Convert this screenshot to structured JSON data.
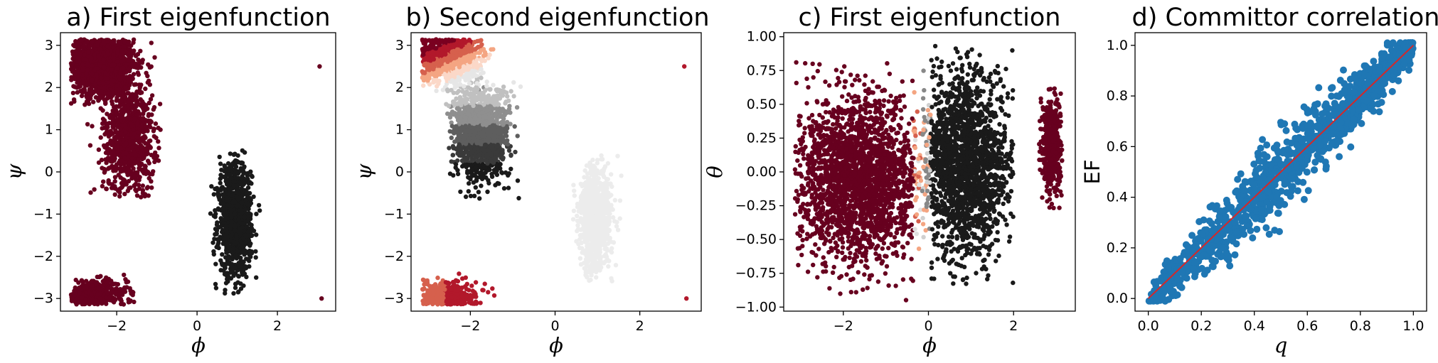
{
  "chart_data": [
    {
      "type": "scatter",
      "title": "a) First eigenfunction",
      "xlabel": "ϕ",
      "ylabel": "ψ",
      "xlim": [
        -3.4,
        3.45
      ],
      "ylim": [
        -3.3,
        3.3
      ],
      "xticks": [
        -2,
        0,
        2
      ],
      "xtick_labels": [
        "−2",
        "0",
        "2"
      ],
      "yticks": [
        -3,
        -2,
        -1,
        0,
        1,
        2,
        3
      ],
      "ytick_labels": [
        "−3",
        "−2",
        "−1",
        "0",
        "1",
        "2",
        "3"
      ],
      "colormap": "RdGy",
      "colors": {
        "high": "#67001f",
        "mid": "#c92a3a",
        "light": "#f0eeee",
        "low": "#1a1a1a"
      },
      "clusters": [
        {
          "name": "upper-left basin",
          "x_range": [
            -3.14,
            -1.2
          ],
          "y_range": [
            -0.5,
            3.14
          ],
          "value": "high"
        },
        {
          "name": "lower-left basin",
          "x_range": [
            -3.14,
            -1.5
          ],
          "y_range": [
            -3.14,
            -1.9
          ],
          "value": "high"
        },
        {
          "name": "right basin",
          "x_range": [
            0.4,
            1.5
          ],
          "y_range": [
            -2.8,
            0.5
          ],
          "value": "low"
        }
      ],
      "outliers": [
        {
          "x": 3.05,
          "y": 2.5
        },
        {
          "x": 3.1,
          "y": -3.0
        }
      ]
    },
    {
      "type": "scatter",
      "title": "b) Second eigenfunction",
      "xlabel": "ϕ",
      "ylabel": "ψ",
      "xlim": [
        -3.4,
        3.45
      ],
      "ylim": [
        -3.3,
        3.3
      ],
      "xticks": [
        -2,
        0,
        2
      ],
      "xtick_labels": [
        "−2",
        "0",
        "2"
      ],
      "yticks": [
        -3,
        -2,
        -1,
        0,
        1,
        2,
        3
      ],
      "ytick_labels": [
        "−3",
        "−2",
        "−1",
        "0",
        "1",
        "2",
        "3"
      ],
      "colormap": "RdGy",
      "clusters": [
        {
          "name": "upper-left basin (top)",
          "x_range": [
            -3.14,
            -1.8
          ],
          "y_range": [
            2.2,
            3.14
          ],
          "value": "mid-high"
        },
        {
          "name": "upper-left basin (bottom)",
          "x_range": [
            -2.5,
            -0.8
          ],
          "y_range": [
            -0.7,
            2.0
          ],
          "value": "low"
        },
        {
          "name": "lower-left basin",
          "x_range": [
            -3.14,
            -1.5
          ],
          "y_range": [
            -3.14,
            -2.2
          ],
          "value": "mid-high"
        },
        {
          "name": "right basin",
          "x_range": [
            0.5,
            1.5
          ],
          "y_range": [
            -2.5,
            0.5
          ],
          "value": "neutral"
        }
      ],
      "outliers": [
        {
          "x": 3.05,
          "y": 2.5
        },
        {
          "x": 3.1,
          "y": -3.0
        }
      ]
    },
    {
      "type": "scatter",
      "title": "c) First eigenfunction",
      "xlabel": "ϕ",
      "ylabel": "θ",
      "xlim": [
        -3.4,
        3.45
      ],
      "ylim": [
        -1.03,
        1.03
      ],
      "xticks": [
        -2,
        0,
        2
      ],
      "xtick_labels": [
        "−2",
        "0",
        "2"
      ],
      "yticks": [
        -1.0,
        -0.75,
        -0.5,
        -0.25,
        0.0,
        0.25,
        0.5,
        0.75,
        1.0
      ],
      "ytick_labels": [
        "−1.00",
        "−0.75",
        "−0.50",
        "−0.25",
        "0.00",
        "0.25",
        "0.50",
        "0.75",
        "1.00"
      ],
      "colormap": "RdGy",
      "clusters": [
        {
          "name": "left blob",
          "x_range": [
            -3.2,
            -0.2
          ],
          "y_range": [
            -0.9,
            0.8
          ],
          "value": "high"
        },
        {
          "name": "center blob",
          "x_range": [
            -0.1,
            2.0
          ],
          "y_range": [
            -0.85,
            0.95
          ],
          "value": "low"
        },
        {
          "name": "right strip",
          "x_range": [
            2.6,
            3.14
          ],
          "y_range": [
            -0.3,
            0.65
          ],
          "value": "high"
        }
      ]
    },
    {
      "type": "scatter",
      "title": "d) Committor correlation",
      "xlabel": "q",
      "ylabel": "EF",
      "xlim": [
        -0.05,
        1.05
      ],
      "ylim": [
        -0.05,
        1.05
      ],
      "xticks": [
        0.0,
        0.2,
        0.4,
        0.6,
        0.8,
        1.0
      ],
      "xtick_labels": [
        "0.0",
        "0.2",
        "0.4",
        "0.6",
        "0.8",
        "1.0"
      ],
      "yticks": [
        0.0,
        0.2,
        0.4,
        0.6,
        0.8,
        1.0
      ],
      "ytick_labels": [
        "0.0",
        "0.2",
        "0.4",
        "0.6",
        "0.8",
        "1.0"
      ],
      "point_color": "#1f77b4",
      "line": {
        "x": [
          0,
          1
        ],
        "y": [
          0,
          1
        ],
        "color": "#d62728"
      },
      "n_points": 1200,
      "spread": 0.06
    }
  ]
}
